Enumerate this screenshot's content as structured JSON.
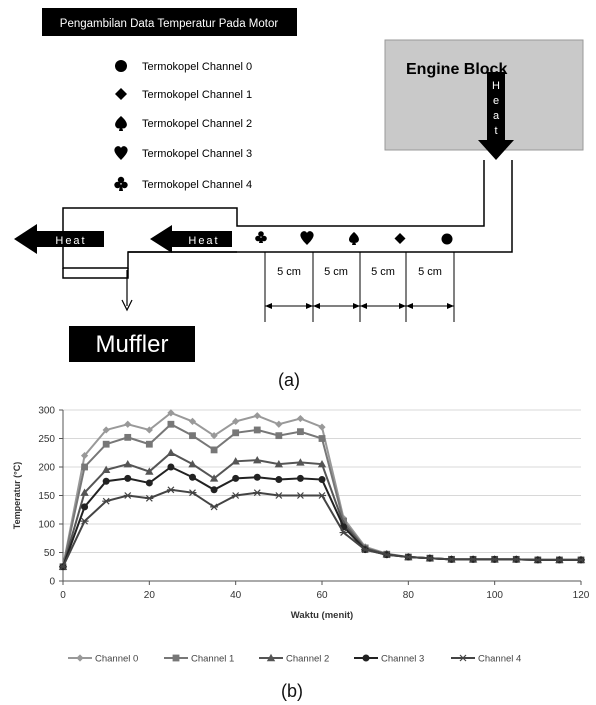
{
  "diagram": {
    "title": "Pengambilan Data Temperatur Pada Motor",
    "legend": [
      {
        "label": "Termokopel Channel 0",
        "icon": "circle-icon"
      },
      {
        "label": "Termokopel Channel 1",
        "icon": "diamond-icon"
      },
      {
        "label": "Termokopel Channel 2",
        "icon": "spade-icon"
      },
      {
        "label": "Termokopel Channel 3",
        "icon": "heart-icon"
      },
      {
        "label": "Termokopel Channel 4",
        "icon": "club-icon"
      }
    ],
    "engine_block": "Engine Block",
    "heat_vertical": [
      "H",
      "e",
      "a",
      "t"
    ],
    "heat_label": "Heat",
    "muffler": "Muffler",
    "distances": [
      "5 cm",
      "5 cm",
      "5 cm",
      "5 cm"
    ],
    "caption_a": "(a)",
    "caption_b": "(b)",
    "colors": {
      "engine_block": "#c9c9c9",
      "dark": "#000000"
    }
  },
  "chart_data": {
    "type": "line",
    "xlabel": "Waktu (menit)",
    "ylabel": "Temperatur (°C)",
    "xlim": [
      0,
      120
    ],
    "ylim": [
      0,
      300
    ],
    "xticks": [
      0,
      20,
      40,
      60,
      80,
      100,
      120
    ],
    "yticks": [
      0,
      50,
      100,
      150,
      200,
      250,
      300
    ],
    "grid": true,
    "legend_position": "bottom",
    "x": [
      0,
      5,
      10,
      15,
      20,
      25,
      30,
      35,
      40,
      45,
      50,
      55,
      60,
      65,
      70,
      75,
      80,
      85,
      90,
      95,
      100,
      105,
      110,
      115,
      120
    ],
    "series": [
      {
        "name": "Channel 0",
        "marker": "diamond",
        "color": "#999999",
        "values": [
          25,
          220,
          265,
          275,
          265,
          295,
          280,
          255,
          280,
          290,
          275,
          285,
          270,
          110,
          60,
          48,
          42,
          40,
          38,
          38,
          38,
          38,
          37,
          37,
          37
        ]
      },
      {
        "name": "Channel 1",
        "marker": "square",
        "color": "#777777",
        "values": [
          25,
          200,
          240,
          252,
          240,
          275,
          255,
          230,
          260,
          265,
          255,
          262,
          250,
          105,
          58,
          47,
          42,
          40,
          38,
          38,
          38,
          38,
          37,
          37,
          37
        ]
      },
      {
        "name": "Channel 2",
        "marker": "triangle",
        "color": "#555555",
        "values": [
          25,
          155,
          195,
          205,
          192,
          225,
          205,
          180,
          210,
          212,
          205,
          208,
          205,
          100,
          57,
          47,
          42,
          40,
          38,
          38,
          38,
          38,
          37,
          37,
          37
        ]
      },
      {
        "name": "Channel 3",
        "marker": "circle",
        "color": "#222222",
        "values": [
          25,
          130,
          175,
          180,
          172,
          200,
          182,
          160,
          180,
          182,
          178,
          180,
          178,
          95,
          55,
          46,
          42,
          40,
          38,
          38,
          38,
          38,
          37,
          37,
          37
        ]
      },
      {
        "name": "Channel 4",
        "marker": "star",
        "color": "#444444",
        "values": [
          25,
          105,
          140,
          150,
          145,
          160,
          155,
          130,
          150,
          155,
          150,
          150,
          150,
          85,
          55,
          46,
          42,
          40,
          38,
          38,
          38,
          38,
          37,
          37,
          37
        ]
      }
    ]
  }
}
